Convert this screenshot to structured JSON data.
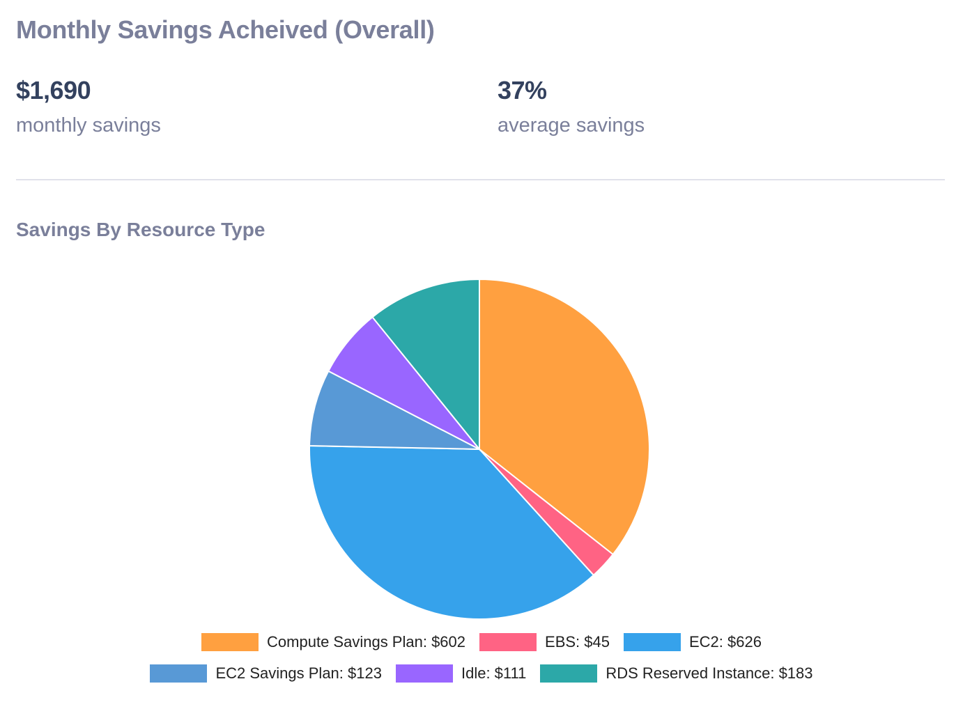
{
  "header": {
    "title": "Monthly Savings Acheived (Overall)"
  },
  "stats": [
    {
      "value": "$1,690",
      "label": "monthly savings"
    },
    {
      "value": "37%",
      "label": "average savings"
    }
  ],
  "section": {
    "title": "Savings By Resource Type"
  },
  "legend": [
    {
      "label": "Compute Savings Plan: $602",
      "color": "#ffa040"
    },
    {
      "label": "EBS: $45",
      "color": "#ff6384"
    },
    {
      "label": "EC2: $626",
      "color": "#36a2eb"
    },
    {
      "label": "EC2 Savings Plan: $123",
      "color": "#5899d6"
    },
    {
      "label": "Idle: $111",
      "color": "#9966ff"
    },
    {
      "label": "RDS Reserved Instance: $183",
      "color": "#2ca8a8"
    }
  ],
  "chart_data": {
    "type": "pie",
    "title": "Savings By Resource Type",
    "categories": [
      "Compute Savings Plan",
      "EBS",
      "EC2",
      "EC2 Savings Plan",
      "Idle",
      "RDS Reserved Instance"
    ],
    "values": [
      602,
      45,
      626,
      123,
      111,
      183
    ],
    "colors": [
      "#ffa040",
      "#ff6384",
      "#36a2eb",
      "#5899d6",
      "#9966ff",
      "#2ca8a8"
    ],
    "total": 1690,
    "unit": "$",
    "legend_position": "bottom",
    "start_angle": "top, clockwise"
  }
}
